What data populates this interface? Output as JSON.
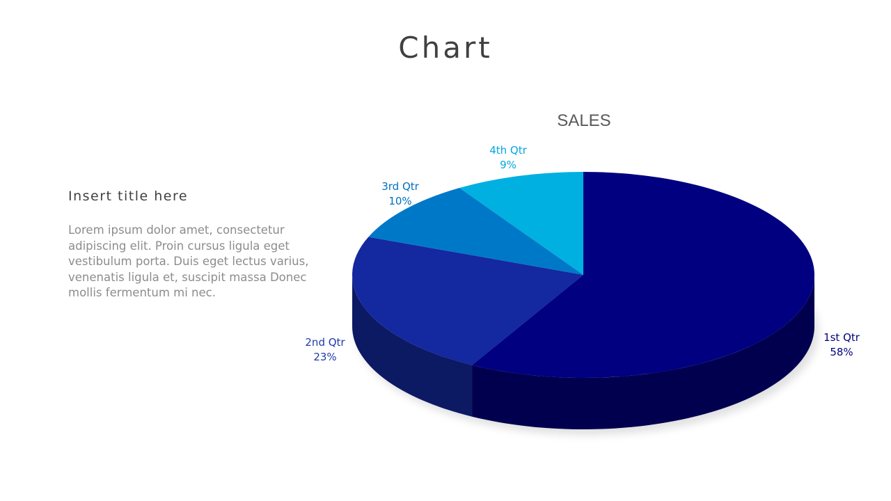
{
  "slide": {
    "title": "Chart",
    "subtitle": "Insert title here",
    "body": "Lorem ipsum dolor amet, consectetur adipiscing elit. Proin cursus ligula eget vestibulum porta. Duis eget lectus varius, venenatis ligula et, suscipit massa Donec mollis fermentum mi nec."
  },
  "chart_data": {
    "type": "pie",
    "style": "3d",
    "title": "SALES",
    "categories": [
      "1st Qtr",
      "2nd Qtr",
      "3rd Qtr",
      "4th Qtr"
    ],
    "values": [
      58,
      23,
      10,
      9
    ],
    "labels": [
      "58%",
      "23%",
      "10%",
      "9%"
    ],
    "colors": [
      "#000080",
      "#1428a0",
      "#0078c8",
      "#00b0e0"
    ],
    "label_colors": [
      "#000080",
      "#1f3aa8",
      "#0070c0",
      "#00a8e0"
    ],
    "legend": "none"
  }
}
